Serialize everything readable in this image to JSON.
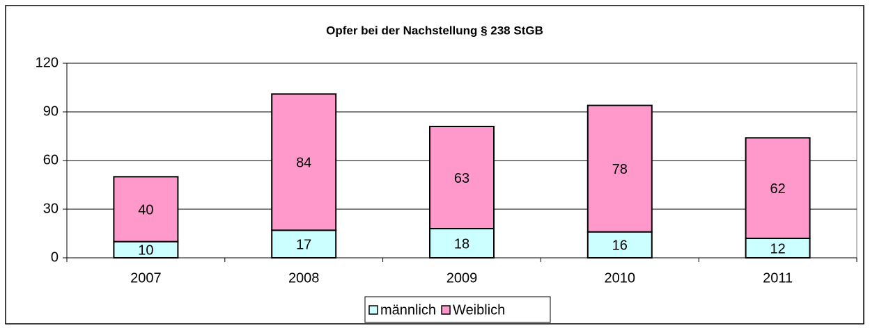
{
  "chart_data": {
    "type": "stacked_bar",
    "title": "Opfer bei der Nachstellung § 238 StGB",
    "categories": [
      "2007",
      "2008",
      "2009",
      "2010",
      "2011"
    ],
    "series": [
      {
        "name": "männlich",
        "color": "#ccffff",
        "values": [
          10,
          17,
          18,
          16,
          12
        ]
      },
      {
        "name": "Weiblich",
        "color": "#ff99cc",
        "values": [
          40,
          84,
          63,
          78,
          62
        ]
      }
    ],
    "ylim": [
      0,
      120
    ],
    "yticks": [
      0,
      30,
      60,
      90,
      120
    ],
    "grid": true,
    "legend": "bottom"
  }
}
